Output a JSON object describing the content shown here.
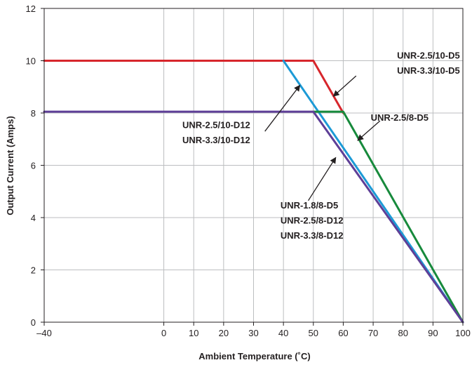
{
  "chart_data": {
    "type": "line",
    "title": "",
    "xlabel": "Ambient Temperature (˚C)",
    "ylabel": "Output Current (Amps)",
    "xlim": [
      -40,
      100
    ],
    "ylim": [
      0,
      12
    ],
    "x_ticks": [
      "–40",
      "0",
      "10",
      "20",
      "30",
      "40",
      "50",
      "60",
      "70",
      "80",
      "90",
      "100"
    ],
    "x_tick_values": [
      -40,
      0,
      10,
      20,
      30,
      40,
      50,
      60,
      70,
      80,
      90,
      100
    ],
    "y_ticks": [
      "0",
      "2",
      "4",
      "6",
      "8",
      "10",
      "12"
    ],
    "y_tick_values": [
      0,
      2,
      4,
      6,
      8,
      10,
      12
    ],
    "grid": true,
    "legend": "none",
    "series": [
      {
        "color": "#d7262c",
        "points": [
          [
            -40,
            10
          ],
          [
            50,
            10
          ],
          [
            60,
            8
          ]
        ]
      },
      {
        "color": "#1c9ad6",
        "points": [
          [
            40,
            10
          ],
          [
            50,
            8.33
          ],
          [
            60,
            6.67
          ],
          [
            100,
            0
          ]
        ]
      },
      {
        "color": "#178a3c",
        "points": [
          [
            50,
            8.05
          ],
          [
            60,
            8.05
          ],
          [
            100,
            0
          ]
        ]
      },
      {
        "color": "#5e3f97",
        "points": [
          [
            -40,
            8.05
          ],
          [
            50,
            8.05
          ],
          [
            100,
            0
          ]
        ]
      }
    ],
    "annotations": [
      {
        "lines": [
          "UNR-2.5/10-D5",
          "UNR-3.3/10-D5"
        ],
        "anchor": "end",
        "text_at": [
          99,
          10.08
        ],
        "line_gap": 0.58,
        "arrow_from": [
          64.3,
          9.42
        ],
        "arrow_to": [
          56.7,
          8.64
        ]
      },
      {
        "lines": [
          "UNR-2.5/10-D12",
          "UNR-3.3/10-D12"
        ],
        "anchor": "end",
        "text_at": [
          28.9,
          7.42
        ],
        "line_gap": 0.58,
        "arrow_from": [
          33.8,
          7.3
        ],
        "arrow_to": [
          45.5,
          9.06
        ]
      },
      {
        "lines": [
          "UNR-2.5/8-D5"
        ],
        "anchor": "start",
        "text_at": [
          69.2,
          7.7
        ],
        "line_gap": 0.58,
        "arrow_from": [
          72.3,
          7.7
        ],
        "arrow_to": [
          64.8,
          6.95
        ]
      },
      {
        "lines": [
          "UNR-1.8/8-D5",
          "UNR-2.5/8-D12",
          "UNR-3.3/8-D12"
        ],
        "anchor": "start",
        "text_at": [
          39.0,
          4.35
        ],
        "line_gap": 0.58,
        "arrow_from": [
          48.3,
          4.65
        ],
        "arrow_to": [
          57.5,
          6.3
        ]
      }
    ]
  }
}
